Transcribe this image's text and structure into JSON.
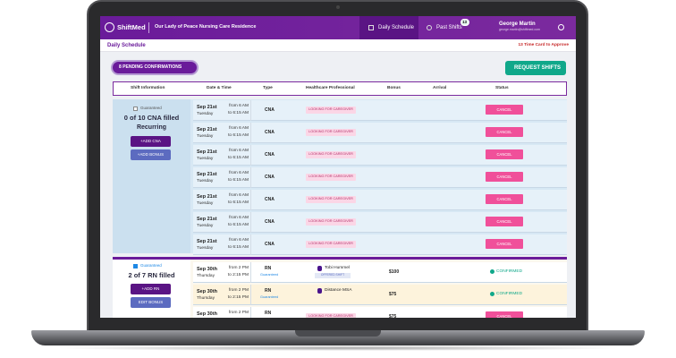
{
  "header": {
    "logo": "ShiftMed",
    "facility": "Our Lady of Peace Nursing Care Residence",
    "nav": [
      "Daily Schedule",
      "Past Shifts"
    ],
    "badge": "13",
    "user_name": "George Martin",
    "user_email": "george.martin@shiftmed.com"
  },
  "subheader": {
    "title": "Daily Schedule",
    "notice": "13 Time Card to Approve"
  },
  "actions": {
    "pending": "8 PENDING CONFIRMATIONS",
    "request": "REQUEST SHIFTS"
  },
  "table": {
    "columns": [
      "Shift Information",
      "Date & Time",
      "Type",
      "Healthcare Professional",
      "Bonus",
      "Arrival",
      "Status"
    ],
    "groups": [
      {
        "guarantee": "Guaranteed",
        "summary": "0 of 10 CNA filled",
        "recurring": "Recurring",
        "buttons": [
          "+ADD CNA",
          "+ADD BONUS"
        ],
        "rows": [
          {
            "date": "Sep 21st",
            "day": "Tuesday",
            "from": "from 6 AM",
            "to": "to 6:15 AM",
            "type": "CNA",
            "professional_status": "LOOKING FOR CAREGIVER",
            "action": "CANCEL"
          },
          {
            "date": "Sep 21st",
            "day": "Tuesday",
            "from": "from 6 AM",
            "to": "to 6:15 AM",
            "type": "CNA",
            "professional_status": "LOOKING FOR CAREGIVER",
            "action": "CANCEL"
          },
          {
            "date": "Sep 21st",
            "day": "Tuesday",
            "from": "from 6 AM",
            "to": "to 6:15 AM",
            "type": "CNA",
            "professional_status": "LOOKING FOR CAREGIVER",
            "action": "CANCEL"
          },
          {
            "date": "Sep 21st",
            "day": "Tuesday",
            "from": "from 6 AM",
            "to": "to 6:15 AM",
            "type": "CNA",
            "professional_status": "LOOKING FOR CAREGIVER",
            "action": "CANCEL"
          },
          {
            "date": "Sep 21st",
            "day": "Tuesday",
            "from": "from 6 AM",
            "to": "to 6:15 AM",
            "type": "CNA",
            "professional_status": "LOOKING FOR CAREGIVER",
            "action": "CANCEL"
          },
          {
            "date": "Sep 21st",
            "day": "Tuesday",
            "from": "from 6 AM",
            "to": "to 6:15 AM",
            "type": "CNA",
            "professional_status": "LOOKING FOR CAREGIVER",
            "action": "CANCEL"
          },
          {
            "date": "Sep 21st",
            "day": "Tuesday",
            "from": "from 6 AM",
            "to": "to 6:15 AM",
            "type": "CNA",
            "professional_status": "LOOKING FOR CAREGIVER",
            "action": "CANCEL"
          }
        ]
      },
      {
        "guarantee": "Guaranteed",
        "summary": "2 of 7 RN filled",
        "buttons": [
          "+ADD RN",
          "EDIT BONUS"
        ],
        "rows": [
          {
            "date": "Sep 30th",
            "day": "Thursday",
            "from": "from 2 PM",
            "to": "to 2:15 PM",
            "type": "RN",
            "tag": "Guaranteed",
            "professional": "Tobi Hummel",
            "professional_tag": "OFFERED SHIFT",
            "bonus": "$100",
            "status": "CONFIRMED"
          },
          {
            "date": "Sep 30th",
            "day": "Thursday",
            "from": "from 2 PM",
            "to": "to 2:15 PM",
            "type": "RN",
            "tag": "Guaranteed",
            "professional": "Distance MSA",
            "bonus": "$75",
            "status": "CONFIRMED"
          },
          {
            "date": "Sep 30th",
            "day": "Thursday",
            "from": "from 2 PM",
            "to": "to 2:15 PM",
            "type": "RN",
            "tag": "Guaranteed",
            "professional_status": "LOOKING FOR CAREGIVER",
            "bonus": "$75",
            "action": "CANCEL"
          }
        ]
      }
    ]
  }
}
